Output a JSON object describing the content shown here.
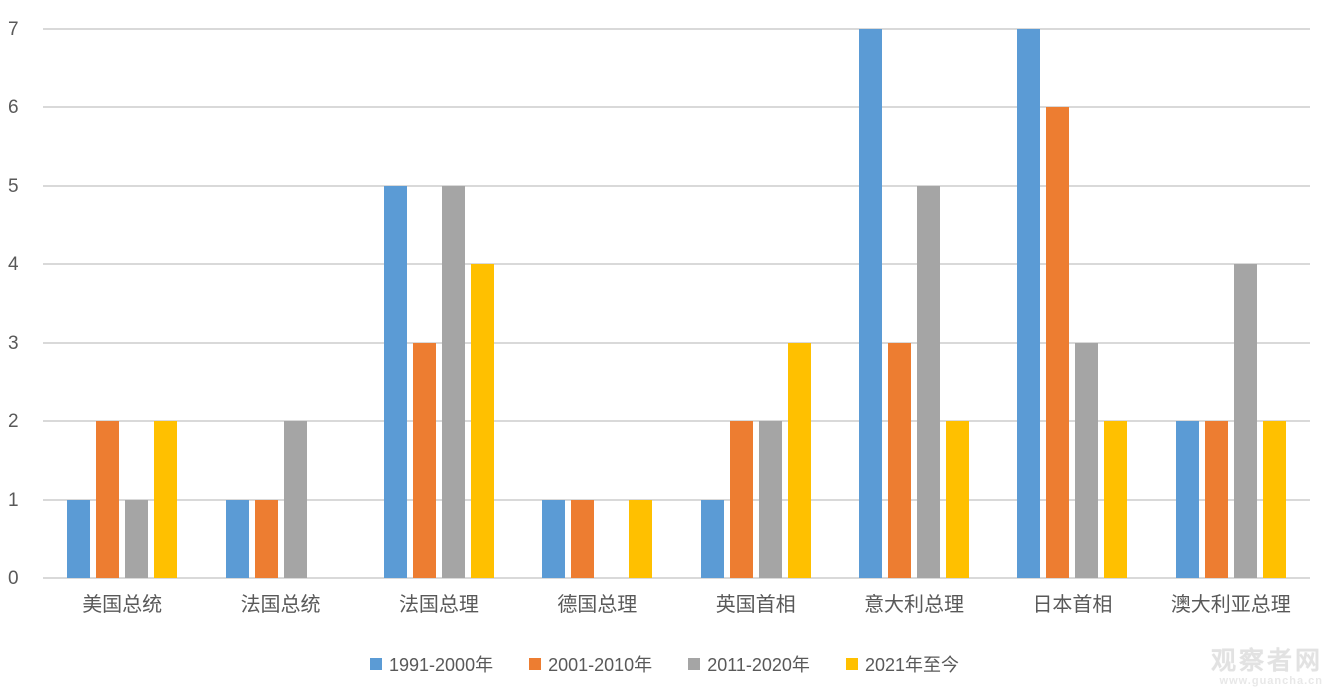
{
  "chart_data": {
    "type": "bar",
    "title": "",
    "categories": [
      "美国总统",
      "法国总统",
      "法国总理",
      "德国总理",
      "英国首相",
      "意大利总理",
      "日本首相",
      "澳大利亚总理"
    ],
    "series": [
      {
        "name": "1991-2000年",
        "color": "#5B9BD5",
        "values": [
          1,
          1,
          5,
          1,
          1,
          7,
          7,
          2
        ]
      },
      {
        "name": "2001-2010年",
        "color": "#ED7D31",
        "values": [
          2,
          1,
          3,
          1,
          2,
          3,
          6,
          2
        ]
      },
      {
        "name": "2011-2020年",
        "color": "#A5A5A5",
        "values": [
          1,
          2,
          5,
          0,
          2,
          5,
          3,
          4
        ]
      },
      {
        "name": "2021年至今",
        "color": "#FFC000",
        "values": [
          2,
          0,
          4,
          1,
          3,
          2,
          2,
          2
        ]
      }
    ],
    "xlabel": "",
    "ylabel": "",
    "ylim": [
      0,
      7
    ],
    "yticks": [
      0,
      1,
      2,
      3,
      4,
      5,
      6,
      7
    ],
    "grid": true,
    "legend_position": "bottom",
    "gridline_color": "#D9D9D9",
    "axis_text_color": "#595959"
  },
  "watermark": {
    "site_name": "观察者网",
    "site_url": "www.guancha.cn"
  }
}
